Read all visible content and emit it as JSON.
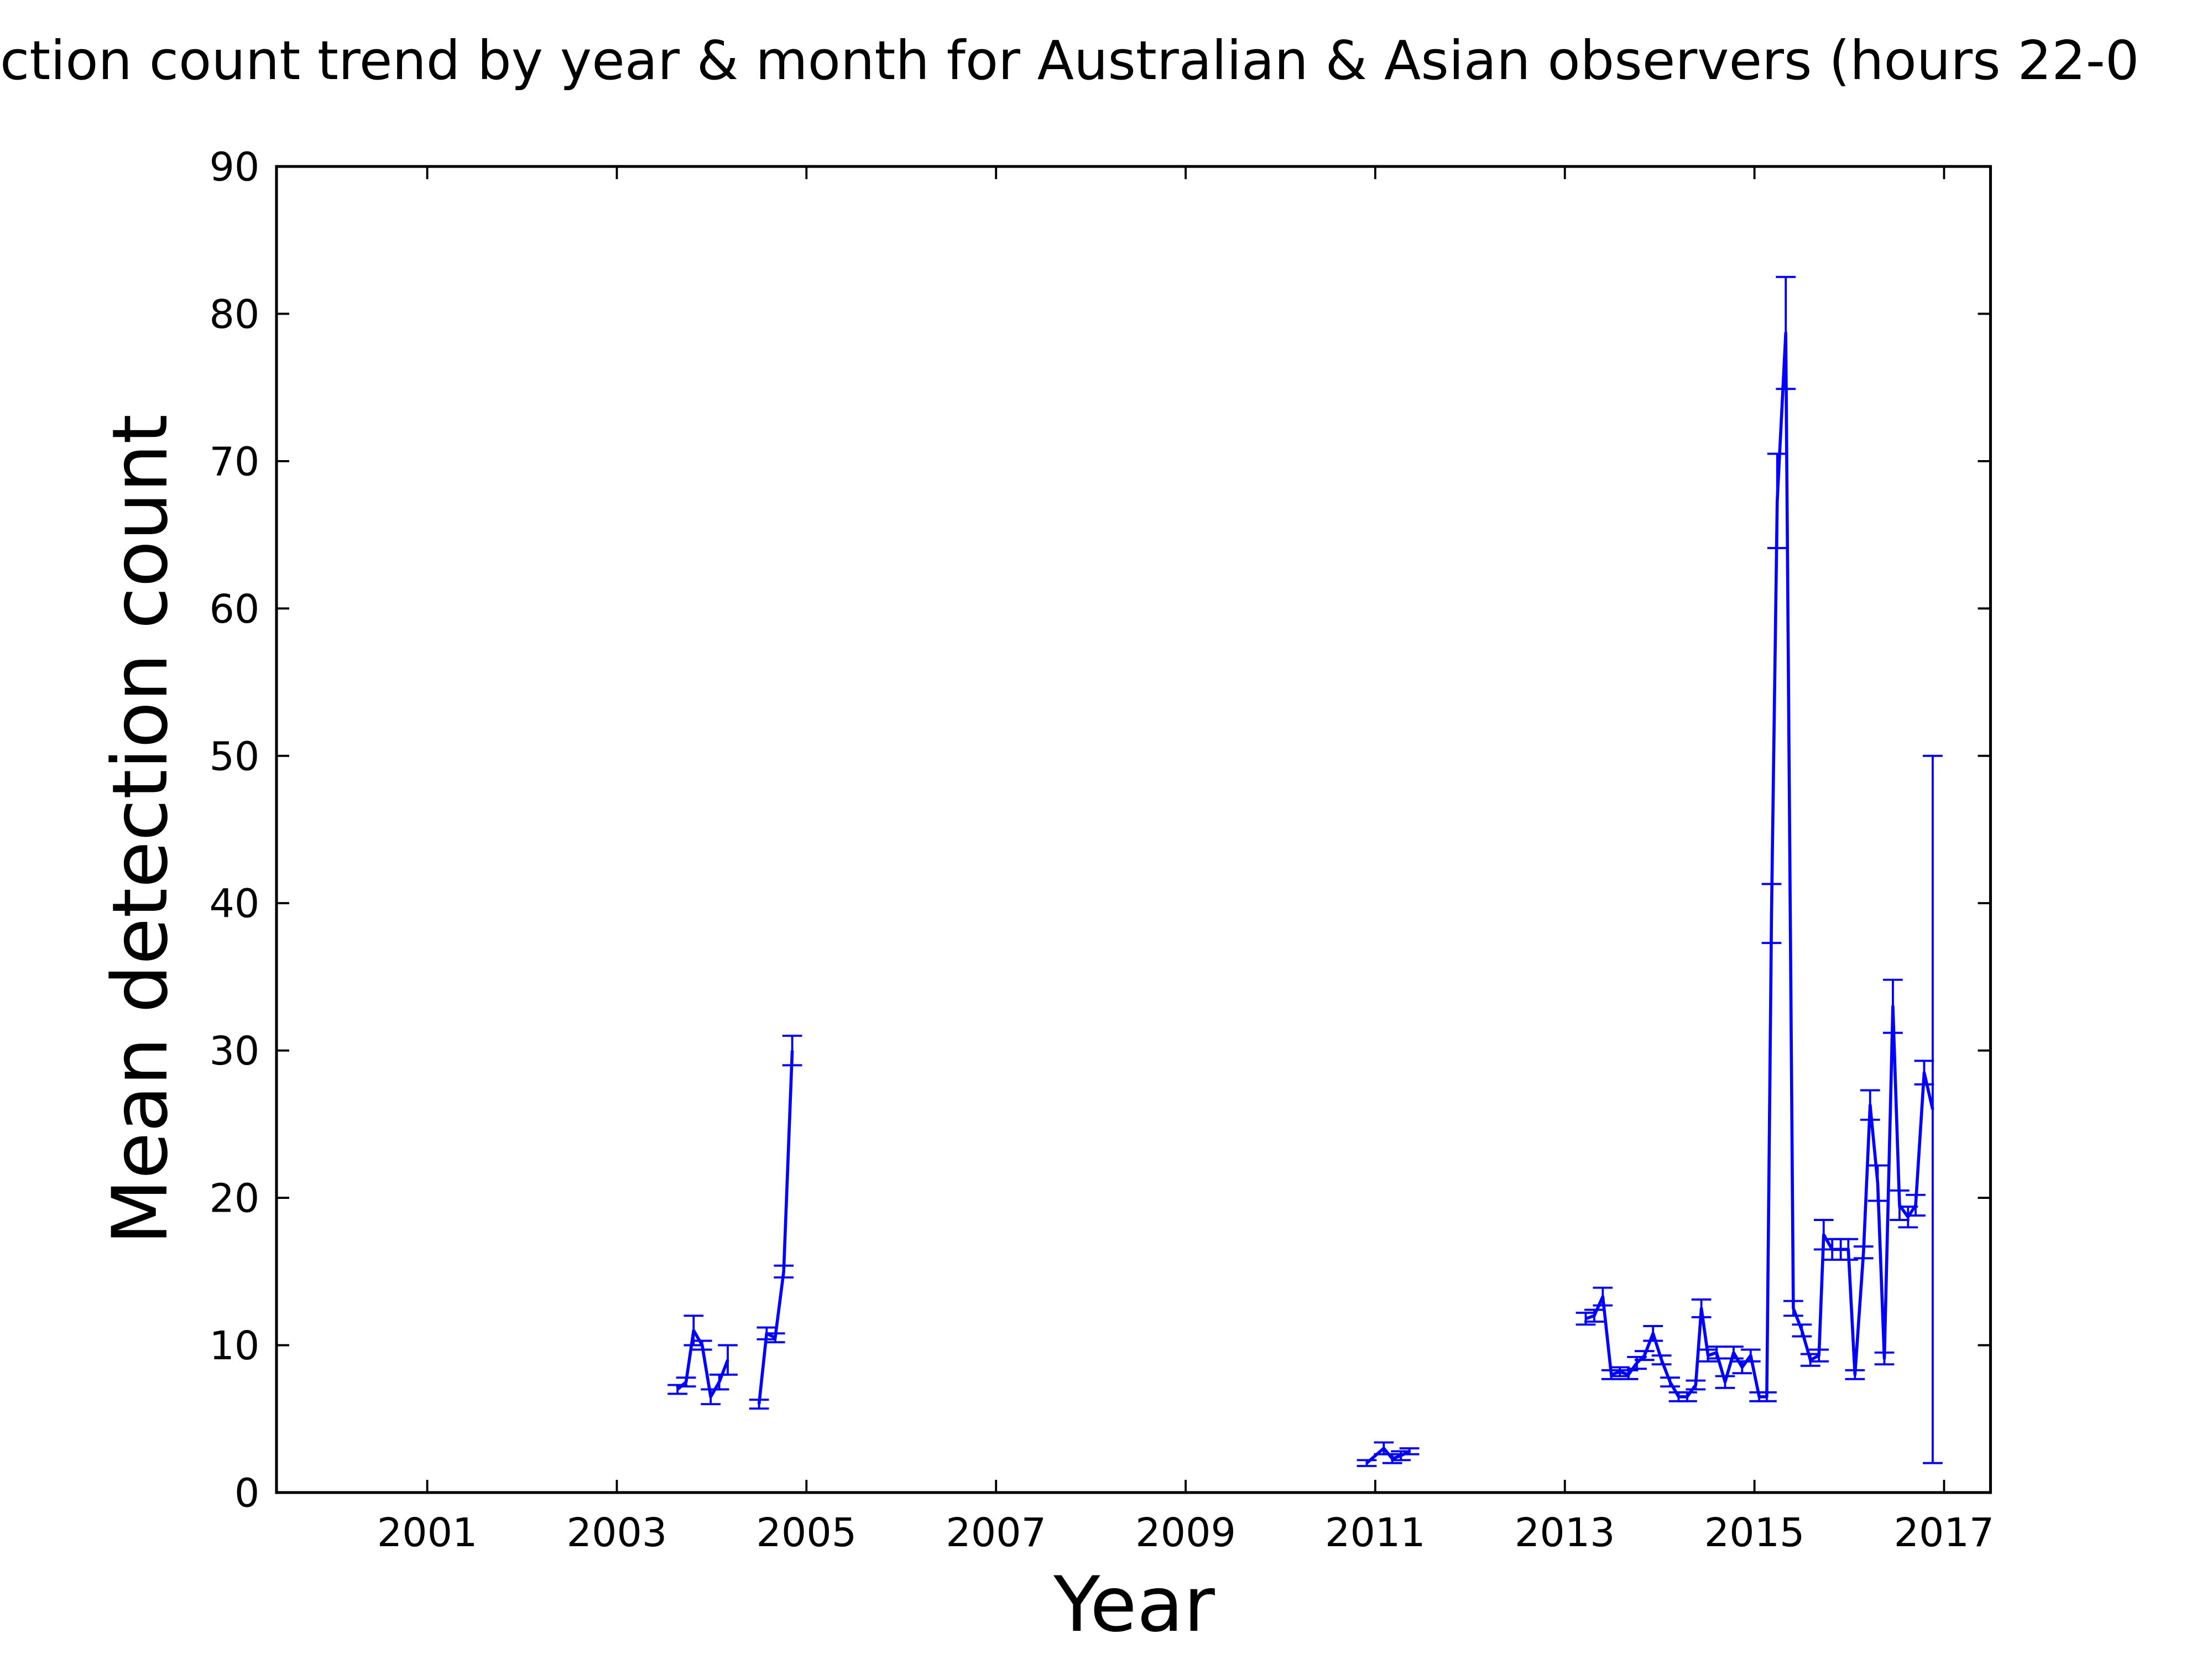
{
  "chart_data": {
    "type": "errorbar-line",
    "title": "ction count trend by year & month for Australian & Asian observers (hours 22-0",
    "x_label": "Year",
    "y_label": "Mean detection count",
    "x": [
      2003.64,
      2003.73,
      2003.81,
      2003.9,
      2003.99,
      2004.08,
      2004.17,
      2004.3,
      2004.5,
      2004.58,
      2004.67,
      2004.76,
      2004.85,
      2007.0,
      2010.91,
      2011.09,
      2011.18,
      2011.27,
      2011.36,
      2012.0,
      2013.22,
      2013.31,
      2013.4,
      2013.49,
      2013.58,
      2013.67,
      2013.76,
      2013.84,
      2013.93,
      2014.02,
      2014.11,
      2014.2,
      2014.29,
      2014.38,
      2014.44,
      2014.51,
      2014.6,
      2014.69,
      2014.78,
      2014.87,
      2014.96,
      2015.05,
      2015.13,
      2015.18,
      2015.24,
      2015.33,
      2015.41,
      2015.5,
      2015.59,
      2015.68,
      2015.73,
      2015.82,
      2015.91,
      2015.99,
      2016.06,
      2016.15,
      2016.22,
      2016.3,
      2016.37,
      2016.46,
      2016.53,
      2016.62,
      2016.7,
      2016.79,
      2016.88
    ],
    "series": [
      {
        "color": "#0000ff",
        "values": [
          7,
          7.5,
          11,
          10,
          6.5,
          7.5,
          9,
          null,
          6,
          10.8,
          10.5,
          15,
          30,
          null,
          2,
          3,
          2.3,
          2.5,
          2.8,
          null,
          11.8,
          12,
          13.3,
          8,
          8.2,
          8,
          8.8,
          9.3,
          10.8,
          9,
          7.5,
          6.5,
          6.5,
          7.3,
          12.5,
          9.3,
          9.5,
          7.5,
          9.5,
          8.5,
          9.3,
          6.5,
          6.5,
          39.3,
          67.3,
          78.7,
          12.5,
          11,
          9,
          9.3,
          17.5,
          16.5,
          16.5,
          16.5,
          8,
          16.3,
          26.3,
          21,
          9.1,
          33,
          19.5,
          18.7,
          19.5,
          28.5,
          26
        ],
        "errors": [
          0.3,
          0.3,
          1,
          0.3,
          0.5,
          0.5,
          1,
          null,
          0.3,
          0.4,
          0.3,
          0.4,
          1,
          null,
          0.2,
          0.4,
          0.3,
          0.3,
          0.2,
          null,
          0.4,
          0.4,
          0.6,
          0.3,
          0.3,
          0.3,
          0.4,
          0.3,
          0.5,
          0.3,
          0.3,
          0.3,
          0.3,
          0.3,
          0.6,
          0.4,
          0.4,
          0.4,
          0.4,
          0.4,
          0.4,
          0.3,
          0.3,
          2,
          3.2,
          3.8,
          0.5,
          0.4,
          0.4,
          0.4,
          1,
          0.7,
          0.7,
          0.7,
          0.3,
          0.4,
          1,
          1.2,
          0.4,
          1.8,
          1,
          0.7,
          0.7,
          0.8,
          24
        ]
      }
    ],
    "xlim": [
      1999.41,
      2017.49
    ],
    "ylim": [
      0,
      90
    ],
    "xticks": [
      2001,
      2003,
      2005,
      2007,
      2009,
      2011,
      2013,
      2015,
      2017
    ],
    "yticks": [
      0,
      10,
      20,
      30,
      40,
      50,
      60,
      70,
      80,
      90
    ],
    "grid": false
  }
}
